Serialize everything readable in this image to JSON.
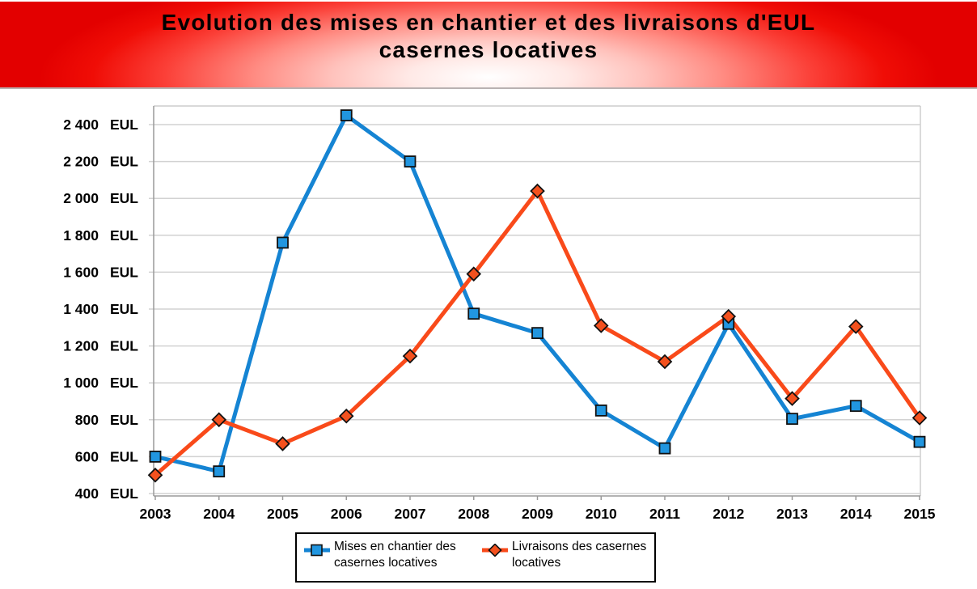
{
  "banner": {
    "title_line1": "Evolution des mises en chantier et des livraisons d'EUL",
    "title_line2": "casernes locatives"
  },
  "chart_data": {
    "type": "line",
    "title": "Evolution des mises en chantier et des livraisons d'EUL casernes locatives",
    "x": [
      2003,
      2004,
      2005,
      2006,
      2007,
      2008,
      2009,
      2010,
      2011,
      2012,
      2013,
      2014,
      2015
    ],
    "x_tick_labels": [
      "2003",
      "2004",
      "2005",
      "2006",
      "2007",
      "2008",
      "2009",
      "2010",
      "2011",
      "2012",
      "2013",
      "2014",
      "2015"
    ],
    "series": [
      {
        "name": "Mises en chantier des casernes locatives",
        "marker": "square",
        "line_color": "#1584d3",
        "marker_fill": "#2196e0",
        "marker_stroke": "#111111",
        "values": [
          600,
          520,
          1760,
          2450,
          2200,
          1375,
          1270,
          850,
          645,
          1320,
          805,
          875,
          680
        ]
      },
      {
        "name": "Livraisons des casernes locatives",
        "marker": "diamond",
        "line_color": "#f94a1a",
        "marker_fill": "#f4511e",
        "marker_stroke": "#111111",
        "values": [
          500,
          800,
          670,
          820,
          1145,
          1590,
          2040,
          1310,
          1115,
          1360,
          915,
          1305,
          810
        ]
      }
    ],
    "ylim": [
      400,
      2500
    ],
    "y_unit": "EUL",
    "y_ticks": [
      400,
      600,
      800,
      1000,
      1200,
      1400,
      1600,
      1800,
      2000,
      2200,
      2400
    ],
    "y_tick_labels": [
      "400 EUL",
      "600 EUL",
      "800 EUL",
      "1 000 EUL",
      "1 200 EUL",
      "1 400 EUL",
      "1 600 EUL",
      "1 800 EUL",
      "2 000 EUL",
      "2 200 EUL",
      "2 400 EUL"
    ],
    "grid": "horizontal",
    "legend_position": "bottom"
  },
  "legend": {
    "item1": "Mises en chantier des casernes locatives",
    "item2": "Livraisons des casernes locatives"
  },
  "colors": {
    "series1": "#1584d3",
    "series1_fill": "#2196e0",
    "series2": "#f94a1a",
    "series2_fill": "#f4511e",
    "gridline": "#d2d2d2",
    "banner_red": "#e30000"
  }
}
